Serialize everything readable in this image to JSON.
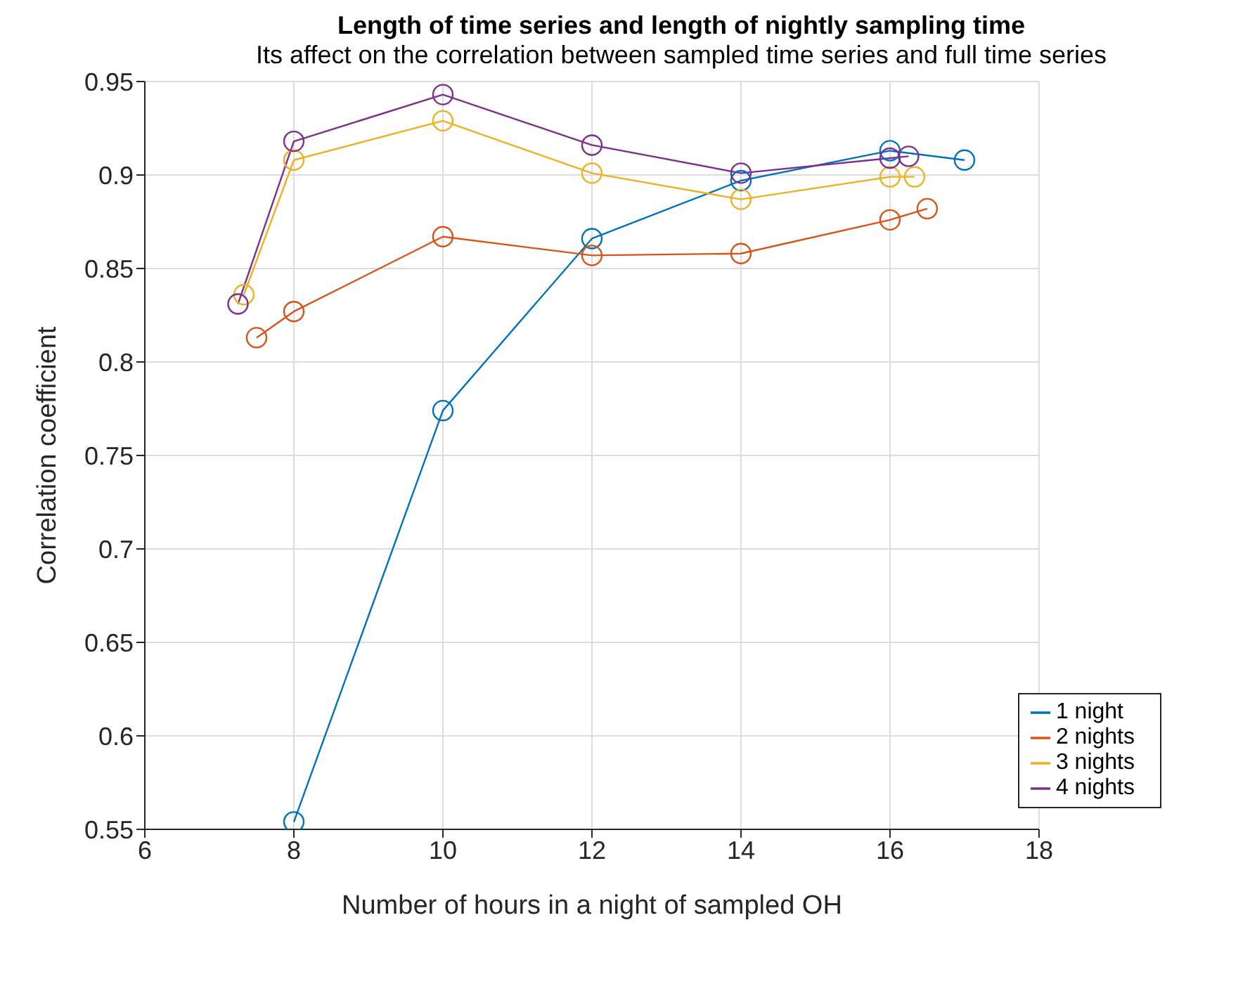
{
  "chart_data": {
    "type": "line",
    "title": "Length of time series and length of nightly sampling time",
    "subtitle": "Its affect on the correlation between sampled time series and full time series",
    "xlabel": "Number of hours in a night of sampled OH",
    "ylabel": "Correlation coefficient",
    "series": [
      {
        "name": "1 night",
        "color": "#0072bd",
        "x": [
          8,
          10,
          12,
          14,
          16,
          17
        ],
        "values": [
          0.554,
          0.774,
          0.866,
          0.897,
          0.913,
          0.908
        ]
      },
      {
        "name": "2 nights",
        "color": "#d95319",
        "x": [
          7.5,
          8,
          10,
          12,
          14,
          16,
          16.5
        ],
        "values": [
          0.813,
          0.827,
          0.867,
          0.857,
          0.858,
          0.876,
          0.882
        ]
      },
      {
        "name": "3 nights",
        "color": "#edb120",
        "x": [
          7.33,
          8,
          10,
          12,
          14,
          16,
          16.33
        ],
        "values": [
          0.836,
          0.908,
          0.929,
          0.901,
          0.887,
          0.899,
          0.899
        ]
      },
      {
        "name": "4 nights",
        "color": "#7e2f8e",
        "x": [
          7.25,
          8,
          10,
          12,
          14,
          16,
          16.25
        ],
        "values": [
          0.831,
          0.918,
          0.943,
          0.916,
          0.901,
          0.909,
          0.91
        ]
      }
    ],
    "xlim": [
      6,
      18
    ],
    "xticks": [
      6,
      8,
      10,
      12,
      14,
      16,
      18
    ],
    "ylim": [
      0.55,
      0.95
    ],
    "yticks": [
      0.55,
      0.6,
      0.65,
      0.7,
      0.75,
      0.8,
      0.85,
      0.9,
      0.95
    ],
    "grid": true,
    "legend": "bottom right",
    "marker": "circle",
    "line_style": "solid"
  }
}
